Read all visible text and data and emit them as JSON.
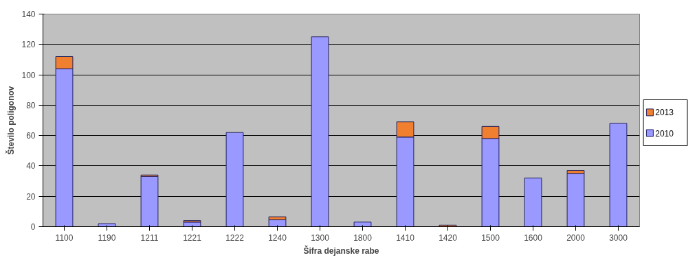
{
  "chart_data": {
    "type": "bar",
    "stacked": true,
    "xlabel": "Šifra dejanske rabe",
    "ylabel": "Število poligonov",
    "categories": [
      "1100",
      "1190",
      "1211",
      "1221",
      "1222",
      "1240",
      "1300",
      "1800",
      "1410",
      "1420",
      "1500",
      "1600",
      "2000",
      "3000"
    ],
    "series": [
      {
        "name": "2010",
        "color": "#9999ff",
        "values": [
          104,
          2,
          33,
          3,
          62,
          4.5,
          125,
          3,
          59,
          0,
          58,
          32,
          35,
          68
        ]
      },
      {
        "name": "2013",
        "color": "#f08030",
        "values": [
          8,
          0,
          1,
          1,
          0,
          2,
          0,
          0,
          10,
          1,
          8,
          0,
          2,
          0
        ]
      }
    ],
    "ylim": [
      0,
      140
    ],
    "yticks": [
      0,
      20,
      40,
      60,
      80,
      100,
      120,
      140
    ],
    "grid": "y",
    "legend": "right"
  }
}
